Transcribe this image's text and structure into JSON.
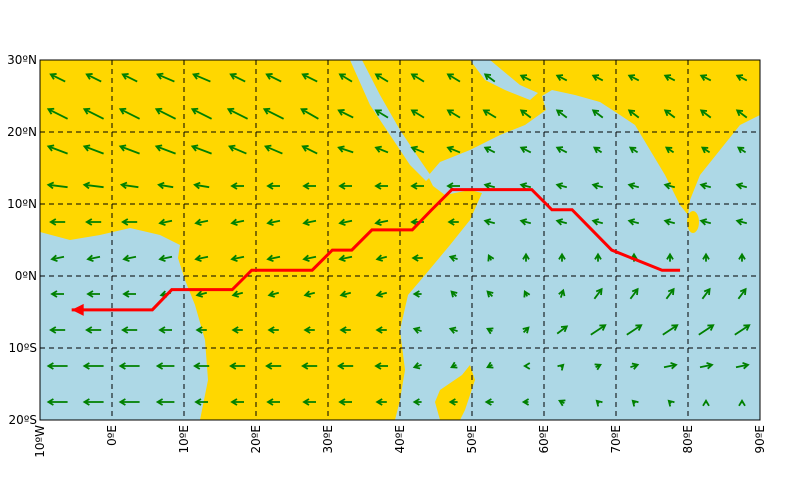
{
  "chart_data": {
    "type": "map",
    "xlim": [
      -10,
      90
    ],
    "ylim": [
      -20,
      30
    ],
    "xticks": [
      {
        "value": -10,
        "label": "10ºW"
      },
      {
        "value": 0,
        "label": "0ºE"
      },
      {
        "value": 10,
        "label": "10ºE"
      },
      {
        "value": 20,
        "label": "20ºE"
      },
      {
        "value": 30,
        "label": "30ºE"
      },
      {
        "value": 40,
        "label": "40ºE"
      },
      {
        "value": 50,
        "label": "50ºE"
      },
      {
        "value": 60,
        "label": "60ºE"
      },
      {
        "value": 70,
        "label": "70ºE"
      },
      {
        "value": 80,
        "label": "80ºE"
      },
      {
        "value": 90,
        "label": "90ºE"
      }
    ],
    "yticks": [
      {
        "value": 30,
        "label": "30ºN"
      },
      {
        "value": 20,
        "label": "20ºN"
      },
      {
        "value": 10,
        "label": "10ºN"
      },
      {
        "value": 0,
        "label": "0ºN"
      },
      {
        "value": -10,
        "label": "10ºS"
      },
      {
        "value": -20,
        "label": "20ºS"
      }
    ],
    "grid": true,
    "wind": {
      "color": "#008000",
      "lons": [
        -7.5,
        -2.5,
        2.5,
        7.5,
        12.5,
        17.5,
        22.5,
        27.5,
        32.5,
        37.5,
        42.5,
        47.5,
        52.5,
        57.5,
        62.5,
        67.5,
        72.5,
        77.5,
        82.5,
        87.5
      ],
      "lats": [
        27.5,
        22.5,
        17.5,
        12.5,
        7.5,
        2.5,
        -2.5,
        -7.5,
        -12.5,
        -17.5
      ],
      "u": [
        [
          -6,
          -6,
          -6,
          -7,
          -7,
          -6,
          -6,
          -6,
          -5,
          -5,
          -5,
          -5,
          -4,
          -4,
          -4,
          -4,
          -4,
          -4,
          -4,
          -4
        ],
        [
          -8,
          -8,
          -8,
          -8,
          -8,
          -8,
          -8,
          -7,
          -6,
          -5,
          -5,
          -5,
          -5,
          -4,
          -4,
          -4,
          -4,
          -4,
          -4,
          -4
        ],
        [
          -8,
          -8,
          -8,
          -8,
          -8,
          -7,
          -7,
          -6,
          -6,
          -5,
          -5,
          -5,
          -4,
          -4,
          -4,
          -3,
          -3,
          -3,
          -3,
          -3
        ],
        [
          -8,
          -8,
          -7,
          -6,
          -6,
          -5,
          -5,
          -5,
          -5,
          -5,
          -5,
          -5,
          -4,
          -4,
          -4,
          -4,
          -4,
          -4,
          -4,
          -4
        ],
        [
          -6,
          -6,
          -6,
          -5,
          -5,
          -5,
          -5,
          -5,
          -5,
          -5,
          -5,
          -4,
          -4,
          -4,
          -4,
          -4,
          -4,
          -4,
          -4,
          -4
        ],
        [
          -5,
          -5,
          -5,
          -5,
          -5,
          -5,
          -5,
          -5,
          -5,
          -4,
          -4,
          -3,
          -1,
          0,
          0,
          0,
          0,
          0,
          0,
          0
        ],
        [
          -5,
          -5,
          -5,
          -4,
          -4,
          -4,
          -4,
          -4,
          -4,
          -4,
          -3,
          -2,
          -2,
          -1,
          1,
          3,
          3,
          3,
          3,
          3
        ],
        [
          -6,
          -6,
          -6,
          -5,
          -4,
          -4,
          -4,
          -4,
          -4,
          -4,
          -3,
          -3,
          -2,
          2,
          4,
          6,
          6,
          6,
          6,
          6
        ],
        [
          -8,
          -8,
          -8,
          -7,
          -6,
          -6,
          -6,
          -6,
          -6,
          -5,
          -3,
          -2,
          -2,
          -1,
          1,
          2,
          3,
          5,
          5,
          5
        ],
        [
          -8,
          -8,
          -8,
          -7,
          -5,
          -5,
          -5,
          -5,
          -5,
          -4,
          -3,
          -3,
          -3,
          -2,
          -2,
          -1,
          -1,
          -1,
          0,
          0
        ]
      ],
      "v": [
        [
          3,
          3,
          3,
          3,
          3,
          3,
          3,
          3,
          3,
          3,
          3,
          3,
          3,
          2,
          2,
          2,
          2,
          2,
          2,
          2
        ],
        [
          4,
          4,
          4,
          4,
          4,
          4,
          4,
          4,
          3,
          3,
          3,
          3,
          3,
          3,
          3,
          3,
          3,
          3,
          3,
          3
        ],
        [
          3,
          3,
          3,
          3,
          3,
          3,
          3,
          3,
          2,
          2,
          2,
          2,
          2,
          2,
          2,
          2,
          2,
          2,
          2,
          2
        ],
        [
          1,
          1,
          1,
          1,
          1,
          0,
          0,
          0,
          0,
          0,
          0,
          0,
          1,
          1,
          1,
          1,
          1,
          1,
          1,
          1
        ],
        [
          0,
          0,
          0,
          -1,
          -1,
          -1,
          -1,
          -1,
          -1,
          -1,
          0,
          0,
          1,
          1,
          1,
          1,
          1,
          1,
          1,
          1
        ],
        [
          -1,
          -1,
          -1,
          -1,
          -1,
          -1,
          -1,
          -1,
          -1,
          -1,
          0,
          1,
          2,
          3,
          3,
          3,
          3,
          3,
          3,
          3
        ],
        [
          0,
          0,
          0,
          -1,
          -1,
          -1,
          -1,
          -1,
          -1,
          -1,
          0,
          2,
          2,
          2,
          3,
          4,
          4,
          4,
          4,
          4
        ],
        [
          0,
          0,
          0,
          0,
          0,
          0,
          0,
          0,
          0,
          0,
          1,
          1,
          1,
          2,
          3,
          4,
          4,
          4,
          4,
          4
        ],
        [
          0,
          0,
          0,
          0,
          0,
          0,
          0,
          0,
          0,
          0,
          -1,
          -1,
          -1,
          0,
          1,
          1,
          1,
          1,
          1,
          1
        ],
        [
          0,
          0,
          0,
          0,
          0,
          0,
          0,
          0,
          0,
          0,
          0,
          0,
          0,
          0,
          1,
          1,
          1,
          1,
          1,
          1
        ]
      ]
    },
    "route": {
      "color": "#ff0000",
      "lons": [
        -5.6,
        5.6,
        8.3,
        16.7,
        19.4,
        27.8,
        30.6,
        33.3,
        36.1,
        41.7,
        44.4,
        47.2,
        58.3,
        61.1,
        63.9,
        69.4,
        76.4,
        78.9
      ],
      "lats": [
        -4.7,
        -4.7,
        -1.9,
        -1.9,
        0.8,
        0.8,
        3.6,
        3.6,
        6.4,
        6.4,
        9.2,
        12,
        12,
        9.2,
        9.2,
        3.6,
        0.8,
        0.8
      ]
    }
  }
}
